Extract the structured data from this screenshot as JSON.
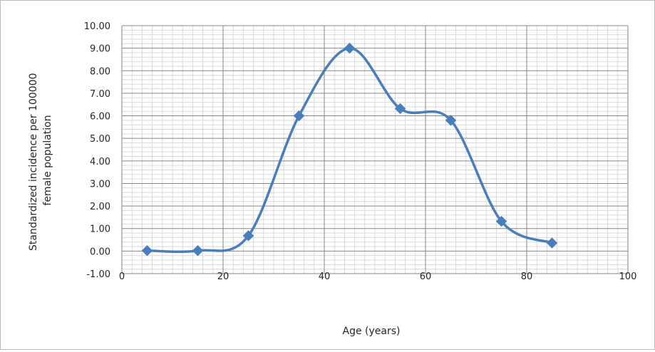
{
  "chart_data": {
    "type": "line",
    "title": "",
    "xlabel": "Age (years)",
    "ylabel_lines": [
      "Standardized incidence per 100000",
      "female population"
    ],
    "x": [
      5,
      15,
      25,
      35,
      45,
      55,
      65,
      75,
      85
    ],
    "y": [
      0.02,
      0.02,
      0.68,
      6.0,
      9.0,
      6.32,
      5.8,
      1.32,
      0.36
    ],
    "xlim": [
      0,
      100
    ],
    "ylim": [
      -1.0,
      10.0
    ],
    "x_ticks": [
      0,
      20,
      40,
      60,
      80,
      100
    ],
    "x_tick_labels": [
      "0",
      "20",
      "40",
      "60",
      "80",
      "100"
    ],
    "y_ticks": [
      -1,
      0,
      1,
      2,
      3,
      4,
      5,
      6,
      7,
      8,
      9,
      10
    ],
    "y_tick_labels": [
      "-1.00",
      "0.00",
      "1.00",
      "2.00",
      "3.00",
      "4.00",
      "5.00",
      "6.00",
      "7.00",
      "8.00",
      "9.00",
      "10.00"
    ],
    "grid": true,
    "minor_grid": true,
    "smooth_line": true,
    "marker": "diamond",
    "legend": "none",
    "colors": {
      "series": "#4a7ebb",
      "marker": "#4a7ebb",
      "major_grid": "#868686",
      "minor_grid": "#d9d9d9",
      "text": "#262626"
    }
  }
}
